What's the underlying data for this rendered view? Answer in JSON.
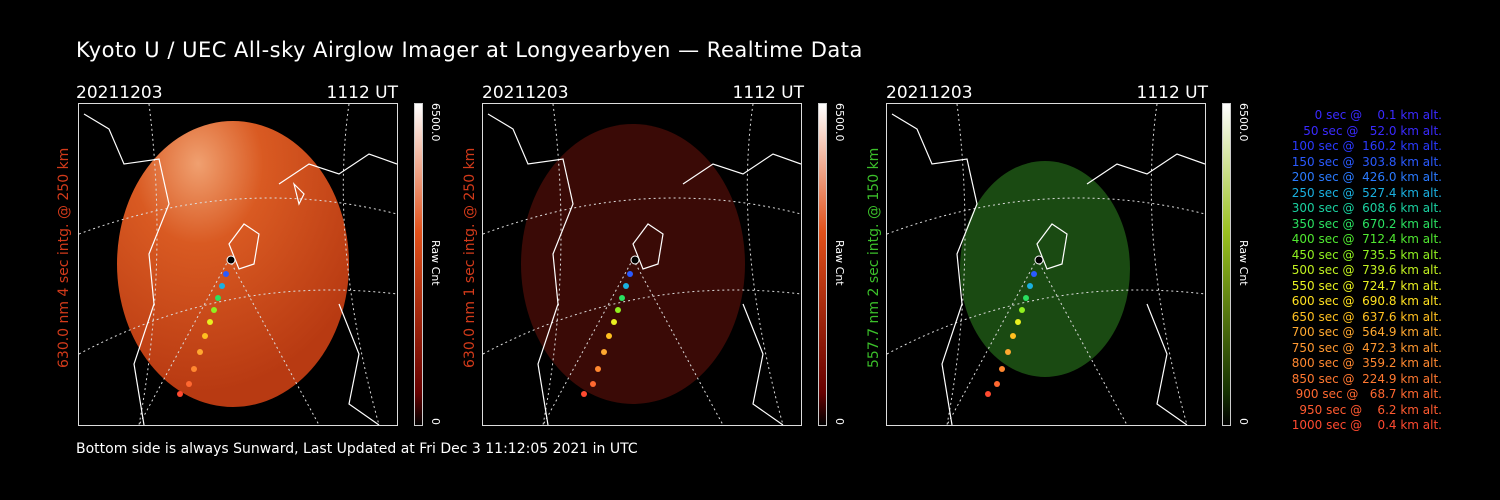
{
  "title": "Kyoto U / UEC All-sky Airglow Imager at Longyearbyen — Realtime Data",
  "footer": "Bottom side is always Sunward, Last Updated at Fri Dec  3 11:12:05 2021 in UTC",
  "panels": [
    {
      "date": "20211203",
      "time": "1112 UT",
      "side_label": "630.0 nm 4 sec intg. @ 250 km",
      "label_color": "#d23a1a",
      "cbar_max": "6500.0",
      "cbar_min": "0",
      "cbar_unit": "Raw Cnt",
      "cbar_color": "#e0501a"
    },
    {
      "date": "20211203",
      "time": "1112 UT",
      "side_label": "630.0 nm 1 sec intg. @ 250 km",
      "label_color": "#d23a1a",
      "cbar_max": "6500.0",
      "cbar_min": "0",
      "cbar_unit": "Raw Cnt",
      "cbar_color": "#e0501a"
    },
    {
      "date": "20211203",
      "time": "1112 UT",
      "side_label": "557.7 nm 2 sec intg. @ 150 km",
      "label_color": "#3bbf2a",
      "cbar_max": "6500.0",
      "cbar_min": "0",
      "cbar_unit": "Raw Cnt",
      "cbar_color": "#5aaa10"
    }
  ],
  "legend": [
    {
      "text": "   0 sec @    0.1 km alt.",
      "color": "#3a2aff"
    },
    {
      "text": "  50 sec @   52.0 km alt.",
      "color": "#3a2aff"
    },
    {
      "text": " 100 sec @  160.2 km alt.",
      "color": "#2a3aff"
    },
    {
      "text": " 150 sec @  303.8 km alt.",
      "color": "#2a5aff"
    },
    {
      "text": " 200 sec @  426.0 km alt.",
      "color": "#2a7aff"
    },
    {
      "text": " 250 sec @  527.4 km alt.",
      "color": "#1ab0e0"
    },
    {
      "text": " 300 sec @  608.6 km alt.",
      "color": "#1ad0a0"
    },
    {
      "text": " 350 sec @  670.2 km alt.",
      "color": "#2ae060"
    },
    {
      "text": " 400 sec @  712.4 km alt.",
      "color": "#50e830"
    },
    {
      "text": " 450 sec @  735.5 km alt.",
      "color": "#90f020"
    },
    {
      "text": " 500 sec @  739.6 km alt.",
      "color": "#c0f020"
    },
    {
      "text": " 550 sec @  724.7 km alt.",
      "color": "#e8f020"
    },
    {
      "text": " 600 sec @  690.8 km alt.",
      "color": "#ffe020"
    },
    {
      "text": " 650 sec @  637.6 km alt.",
      "color": "#ffc020"
    },
    {
      "text": " 700 sec @  564.9 km alt.",
      "color": "#ffa830"
    },
    {
      "text": " 750 sec @  472.3 km alt.",
      "color": "#ff9830"
    },
    {
      "text": " 800 sec @  359.2 km alt.",
      "color": "#ff8830"
    },
    {
      "text": " 850 sec @  224.9 km alt.",
      "color": "#ff7830"
    },
    {
      "text": " 900 sec @   68.7 km alt.",
      "color": "#ff6830"
    },
    {
      "text": " 950 sec @    6.2 km alt.",
      "color": "#ff5a30"
    },
    {
      "text": "1000 sec @    0.4 km alt.",
      "color": "#ff4a30"
    }
  ]
}
